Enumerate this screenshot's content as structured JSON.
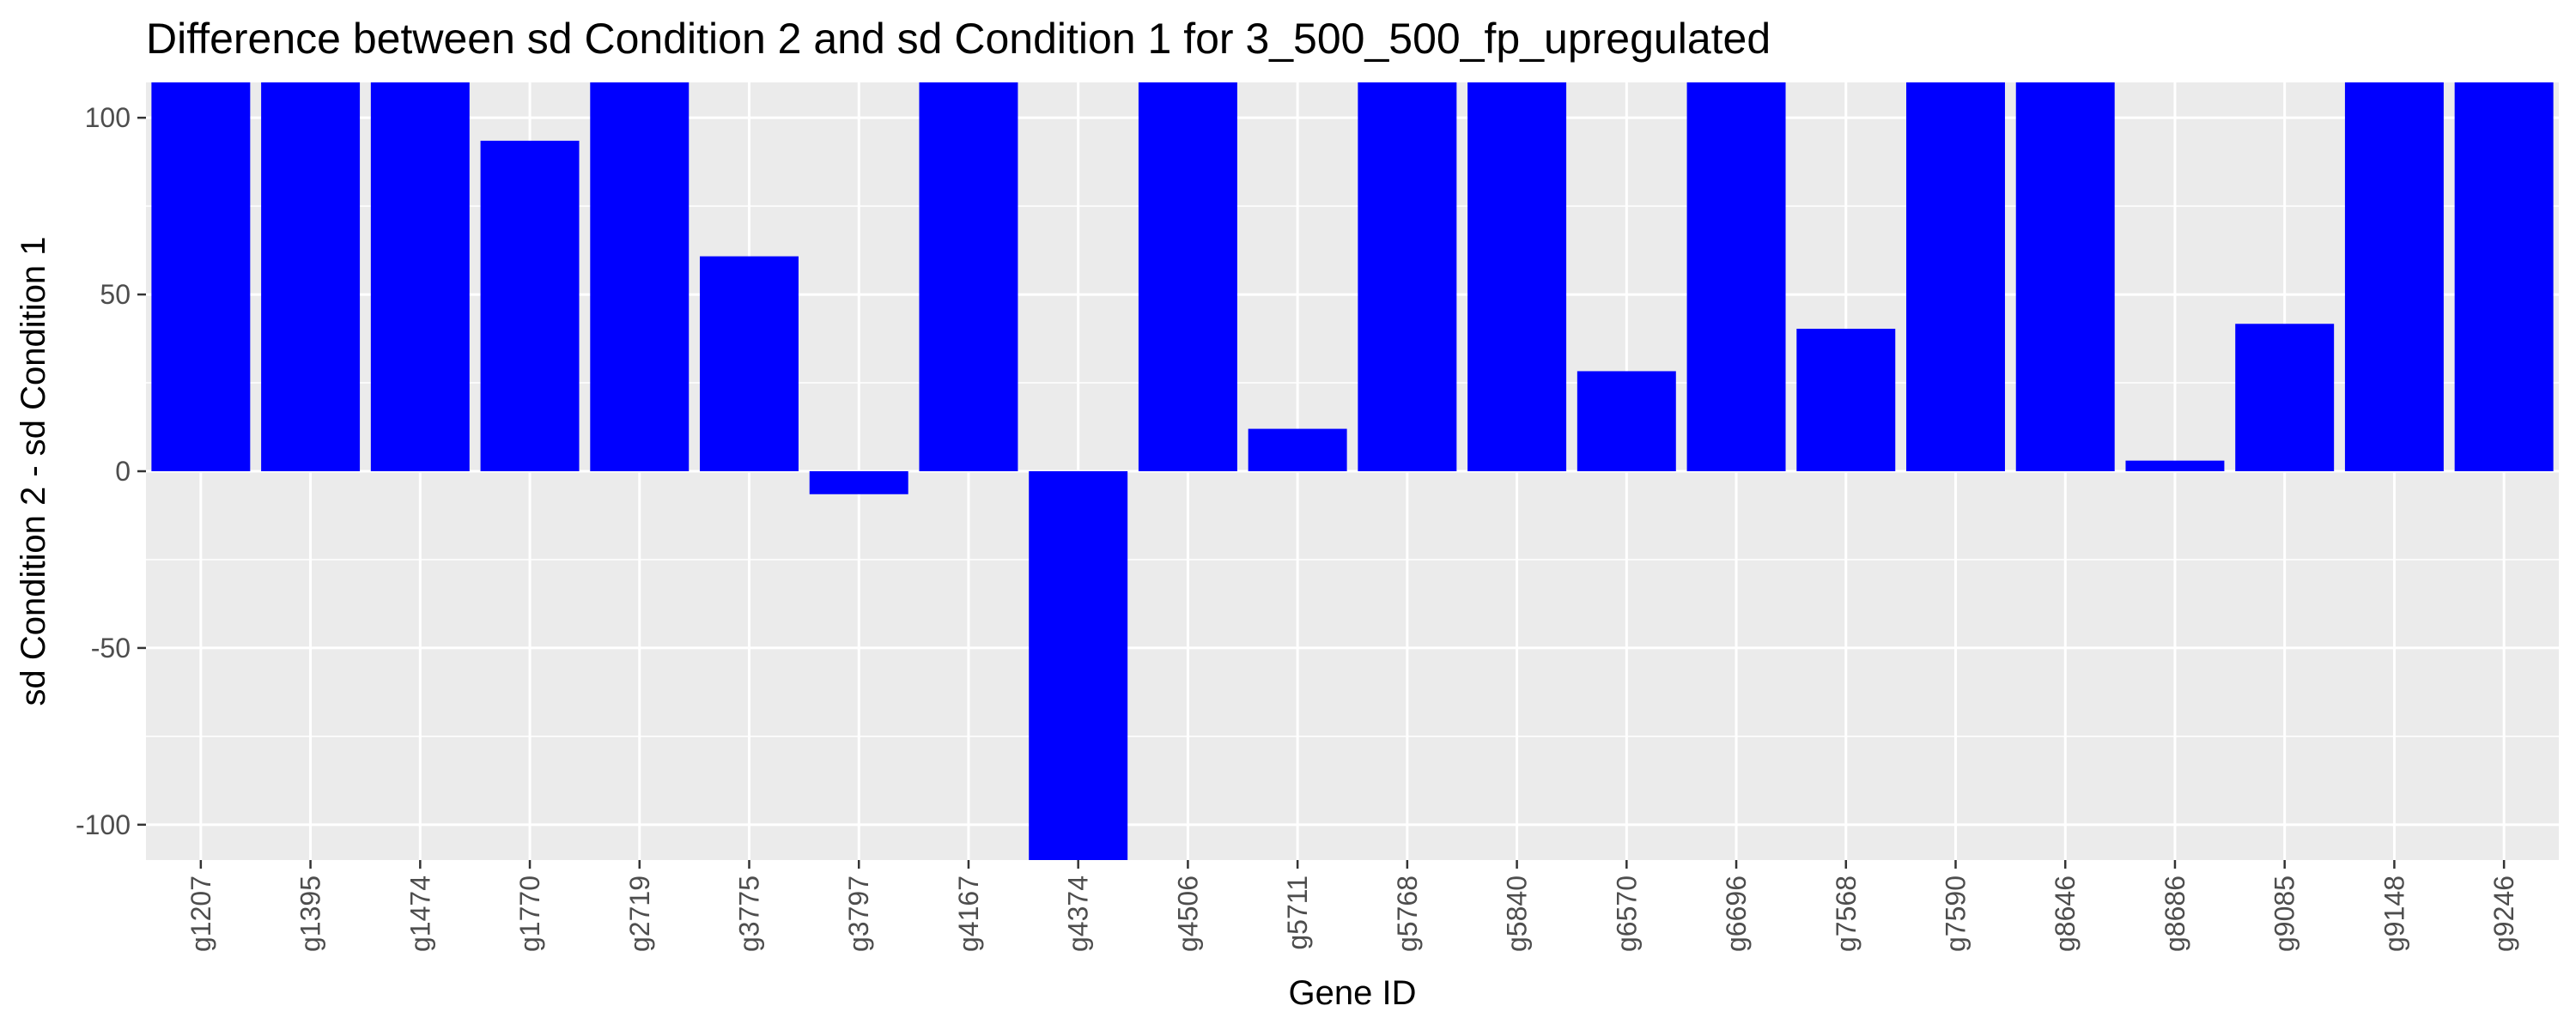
{
  "chart_data": {
    "type": "bar",
    "title": "Difference between sd Condition 2 and sd Condition 1 for 3_500_500_fp_upregulated",
    "xlabel": "Gene ID",
    "ylabel": "sd Condition 2 - sd Condition 1",
    "categories": [
      "g1207",
      "g1395",
      "g1474",
      "g1770",
      "g2719",
      "g3775",
      "g3797",
      "g4167",
      "g4374",
      "g4506",
      "g5711",
      "g5768",
      "g5840",
      "g6570",
      "g6696",
      "g7568",
      "g7590",
      "g8646",
      "g8686",
      "g9085",
      "g9148",
      "g9246"
    ],
    "values": [
      110,
      110,
      110,
      93.5,
      110,
      60.8,
      -6.5,
      110,
      -110,
      110,
      12,
      110,
      110,
      28.3,
      110,
      40.3,
      110,
      110,
      3,
      41.7,
      110,
      110
    ],
    "ylim": [
      -110,
      110
    ],
    "yticks": [
      -100,
      -50,
      0,
      50,
      100
    ],
    "grid": true,
    "colors": {
      "bar": "#0000FF",
      "panel": "#EBEBEB",
      "grid": "#FFFFFF"
    }
  }
}
